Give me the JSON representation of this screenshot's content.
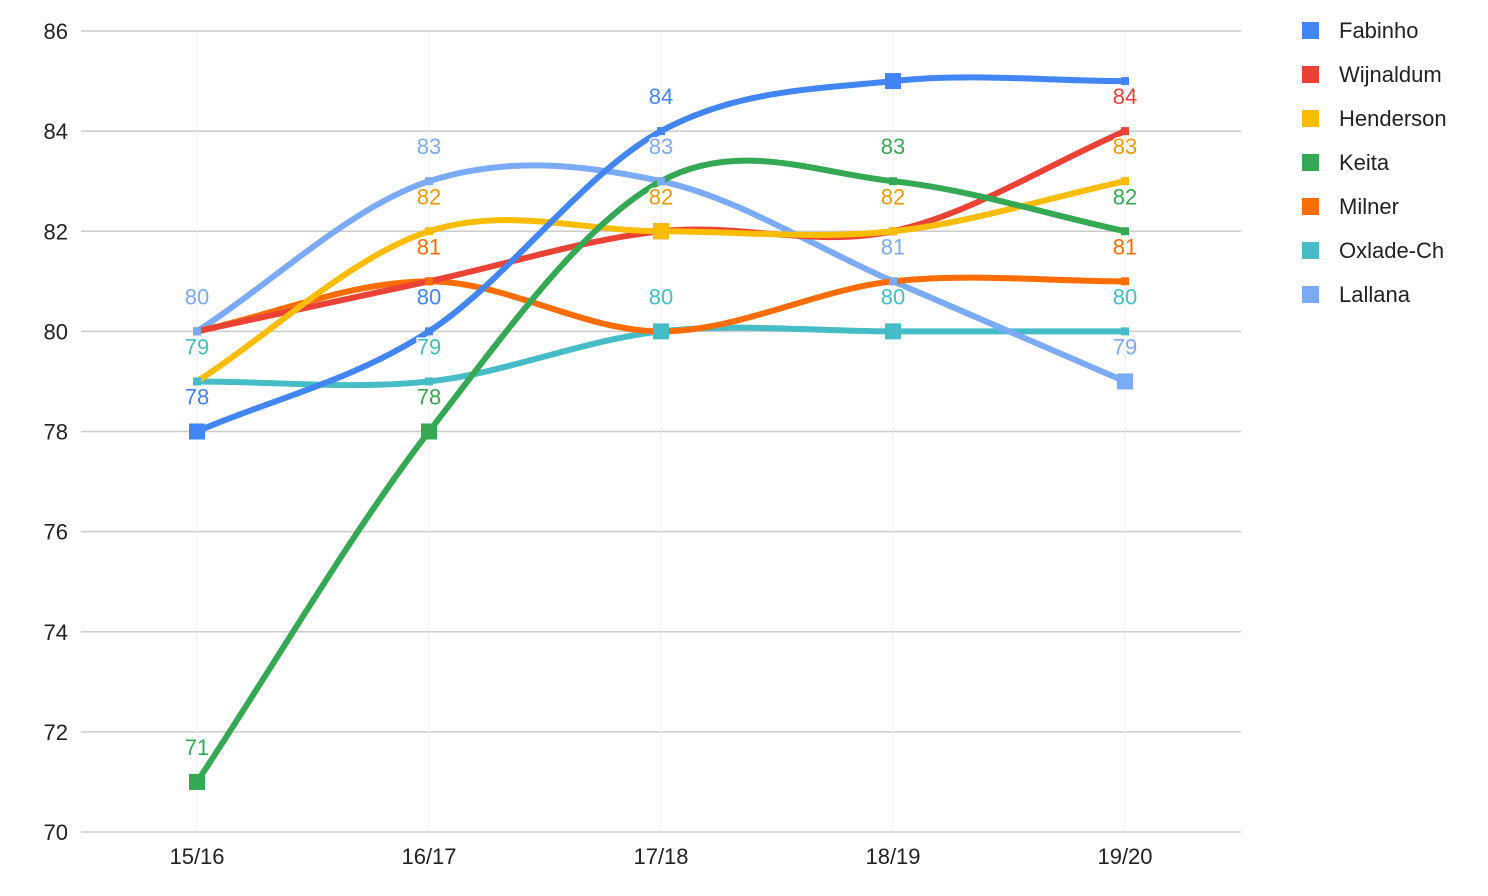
{
  "chart_data": {
    "type": "line",
    "title": "",
    "xlabel": "",
    "ylabel": "",
    "categories": [
      "15/16",
      "16/17",
      "17/18",
      "18/19",
      "19/20"
    ],
    "ylim": [
      70,
      86
    ],
    "yticks": [
      "70",
      "72",
      "74",
      "76",
      "78",
      "80",
      "82",
      "84",
      "86"
    ],
    "grid": true,
    "smooth": true,
    "legend_position": "right-top",
    "series": [
      {
        "name": "Fabinho",
        "color": "#4285F4",
        "values": [
          78,
          80,
          84,
          85,
          85
        ],
        "labels": [
          "78",
          "80",
          "84",
          "",
          ""
        ],
        "label_colors": [
          "#4285F4",
          "#4285F4",
          "#4285F4",
          "",
          ""
        ]
      },
      {
        "name": "Wijnaldum",
        "color": "#EA4335",
        "values": [
          80,
          81,
          82,
          82,
          84
        ],
        "labels": [
          "",
          "",
          "",
          "",
          "84"
        ],
        "label_colors": [
          "",
          "",
          "",
          "",
          "#EA4335"
        ]
      },
      {
        "name": "Henderson",
        "color": "#FBBC04",
        "values": [
          79,
          82,
          82,
          82,
          83
        ],
        "labels": [
          "",
          "82",
          "82",
          "82",
          "83"
        ],
        "label_colors": [
          "",
          "#F29900",
          "#F29900",
          "#F29900",
          "#F29900"
        ]
      },
      {
        "name": "Keita",
        "color": "#34A853",
        "values": [
          71,
          78,
          83,
          83,
          82
        ],
        "labels": [
          "71",
          "78",
          "",
          "83",
          "82"
        ],
        "label_colors": [
          "#34A853",
          "#34A853",
          "",
          "#34A853",
          "#34A853"
        ]
      },
      {
        "name": "Milner",
        "color": "#FF6D01",
        "values": [
          80,
          81,
          80,
          81,
          81
        ],
        "labels": [
          "",
          "81",
          "",
          "",
          "81"
        ],
        "label_colors": [
          "",
          "#FF6D01",
          "",
          "",
          "#FF6D01"
        ]
      },
      {
        "name": "Oxlade-Ch",
        "color": "#46BDC6",
        "values": [
          79,
          79,
          80,
          80,
          80
        ],
        "labels": [
          "79",
          "79",
          "80",
          "80",
          "80"
        ],
        "label_colors": [
          "#46BDC6",
          "#46BDC6",
          "#46BDC6",
          "#46BDC6",
          "#46BDC6"
        ]
      },
      {
        "name": "Lallana",
        "color": "#7BAAF7",
        "values": [
          80,
          83,
          83,
          81,
          79
        ],
        "labels": [
          "80",
          "83",
          "83",
          "81",
          "79"
        ],
        "label_colors": [
          "#7BAAF7",
          "#7BAAF7",
          "#7BAAF7",
          "#7BAAF7",
          "#7BAAF7"
        ]
      }
    ],
    "marked_points": [
      {
        "series": 0,
        "index": 0
      },
      {
        "series": 0,
        "index": 3
      },
      {
        "series": 3,
        "index": 0
      },
      {
        "series": 3,
        "index": 1
      },
      {
        "series": 5,
        "index": 2
      },
      {
        "series": 5,
        "index": 3
      },
      {
        "series": 1,
        "index": 2
      },
      {
        "series": 2,
        "index": 2
      },
      {
        "series": 6,
        "index": 4
      }
    ]
  }
}
